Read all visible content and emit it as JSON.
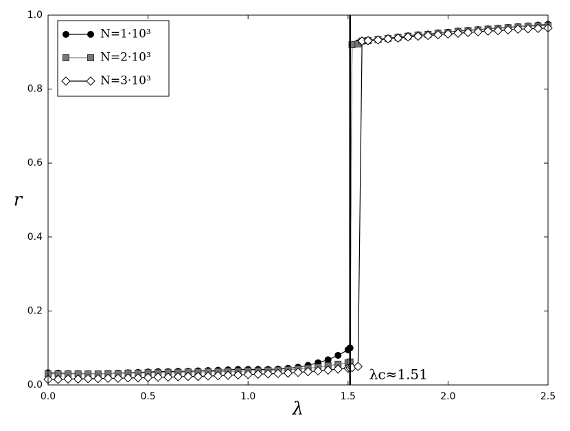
{
  "chart_data": {
    "type": "line",
    "xlabel": "λ",
    "ylabel": "r",
    "annotation": "λc≈1.51",
    "vline": 1.51,
    "x": [
      0,
      0.05,
      0.1,
      0.15,
      0.2,
      0.25,
      0.3,
      0.35,
      0.4,
      0.45,
      0.5,
      0.55,
      0.6,
      0.65,
      0.7,
      0.75,
      0.8,
      0.85,
      0.9,
      0.95,
      1.0,
      1.05,
      1.1,
      1.15,
      1.2,
      1.25,
      1.3,
      1.35,
      1.4,
      1.45,
      1.5,
      1.51,
      1.52,
      1.55,
      1.57,
      1.6,
      1.65,
      1.7,
      1.75,
      1.8,
      1.85,
      1.9,
      1.95,
      2.0,
      2.05,
      2.1,
      2.15,
      2.2,
      2.25,
      2.3,
      2.35,
      2.4,
      2.45,
      2.5
    ],
    "series": [
      {
        "name": "N=1·10³",
        "color": "#000000",
        "line_color": "#000000",
        "marker": "circle",
        "values": [
          0.033,
          0.032,
          0.031,
          0.031,
          0.03,
          0.03,
          0.031,
          0.032,
          0.033,
          0.034,
          0.035,
          0.036,
          0.036,
          0.037,
          0.037,
          0.038,
          0.039,
          0.04,
          0.041,
          0.042,
          0.042,
          0.042,
          0.042,
          0.043,
          0.045,
          0.048,
          0.053,
          0.06,
          0.068,
          0.08,
          0.095,
          0.1,
          0.92,
          0.925,
          0.93,
          0.932,
          0.935,
          0.938,
          0.941,
          0.944,
          0.947,
          0.949,
          0.952,
          0.954,
          0.957,
          0.959,
          0.961,
          0.963,
          0.965,
          0.967,
          0.969,
          0.971,
          0.973,
          0.975
        ]
      },
      {
        "name": "N=2·10³",
        "color": "#777777",
        "line_color": "#888888",
        "marker": "square",
        "values": [
          0.03,
          0.03,
          0.03,
          0.03,
          0.03,
          0.03,
          0.031,
          0.031,
          0.032,
          0.032,
          0.033,
          0.033,
          0.034,
          0.034,
          0.035,
          0.035,
          0.036,
          0.036,
          0.037,
          0.037,
          0.038,
          0.038,
          0.039,
          0.04,
          0.041,
          0.043,
          0.045,
          0.048,
          0.052,
          0.056,
          0.06,
          0.062,
          0.92,
          0.922,
          0.93,
          0.931,
          0.934,
          0.937,
          0.94,
          0.943,
          0.946,
          0.948,
          0.951,
          0.953,
          0.956,
          0.958,
          0.96,
          0.962,
          0.964,
          0.966,
          0.968,
          0.97,
          0.971,
          0.972
        ]
      },
      {
        "name": "N=3·10³",
        "color": "#ffffff",
        "line_color": "#000000",
        "marker": "diamond",
        "values": [
          0.015,
          0.015,
          0.016,
          0.016,
          0.017,
          0.017,
          0.018,
          0.018,
          0.019,
          0.019,
          0.02,
          0.021,
          0.021,
          0.022,
          0.023,
          0.023,
          0.024,
          0.025,
          0.026,
          0.027,
          0.028,
          0.029,
          0.03,
          0.031,
          0.032,
          0.034,
          0.036,
          0.038,
          0.04,
          0.043,
          0.045,
          0.046,
          0.047,
          0.05,
          0.93,
          0.931,
          0.933,
          0.936,
          0.938,
          0.941,
          0.943,
          0.945,
          0.947,
          0.949,
          0.951,
          0.953,
          0.955,
          0.957,
          0.958,
          0.96,
          0.962,
          0.963,
          0.964,
          0.965
        ]
      }
    ],
    "xlim": [
      0,
      2.5
    ],
    "xticks": [
      {
        "value": 0,
        "label": "0.0"
      },
      {
        "value": 0.5,
        "label": "0.5"
      },
      {
        "value": 1,
        "label": "1.0"
      },
      {
        "value": 1.5,
        "label": "1.5"
      },
      {
        "value": 2,
        "label": "2.0"
      },
      {
        "value": 2.5,
        "label": "2.5"
      }
    ],
    "ylim": [
      0,
      1
    ],
    "yticks": [
      {
        "value": 0,
        "label": "0.0"
      },
      {
        "value": 0.2,
        "label": "0.2"
      },
      {
        "value": 0.4,
        "label": "0.4"
      },
      {
        "value": 0.6,
        "label": "0.6"
      },
      {
        "value": 0.8,
        "label": "0.8"
      },
      {
        "value": 1,
        "label": "1.0"
      }
    ],
    "legend": "upper left",
    "grid": false
  }
}
